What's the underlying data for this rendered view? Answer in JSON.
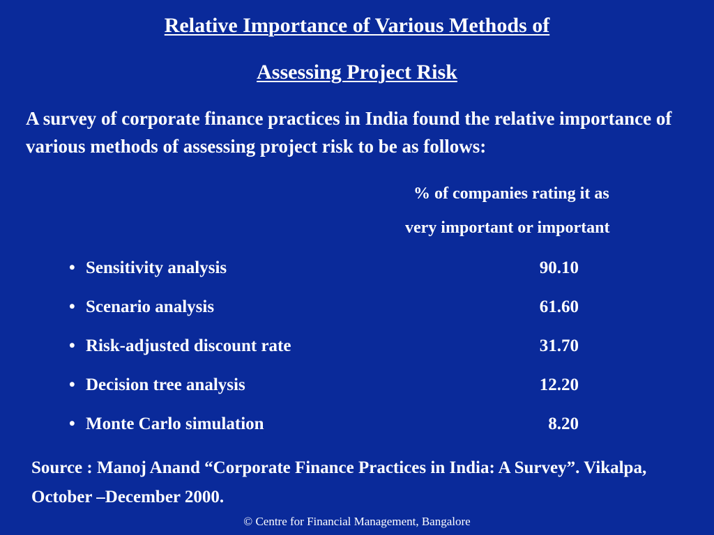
{
  "slide": {
    "title_line1": "Relative Importance of Various Methods of",
    "title_line2": "Assessing Project Risk",
    "intro": "A survey of corporate finance practices in India found the relative importance of various methods of assessing project risk to be as follows:",
    "column_header_line1": "% of companies rating it as",
    "column_header_line2": "very important or important",
    "bullet_symbol": "•",
    "methods": [
      {
        "label": "Sensitivity analysis",
        "value": "90.10"
      },
      {
        "label": "Scenario analysis",
        "value": "61.60"
      },
      {
        "label": "Risk-adjusted discount rate",
        "value": "31.70"
      },
      {
        "label": "Decision tree analysis",
        "value": "12.20"
      },
      {
        "label": "Monte Carlo simulation",
        "value": "8.20"
      }
    ],
    "source": "Source : Manoj Anand “Corporate Finance Practices in India: A Survey”. Vikalpa, October –December 2000.",
    "footer": "© Centre for Financial Management, Bangalore"
  },
  "colors": {
    "background": "#0a2a9a",
    "text": "#ffffff"
  }
}
